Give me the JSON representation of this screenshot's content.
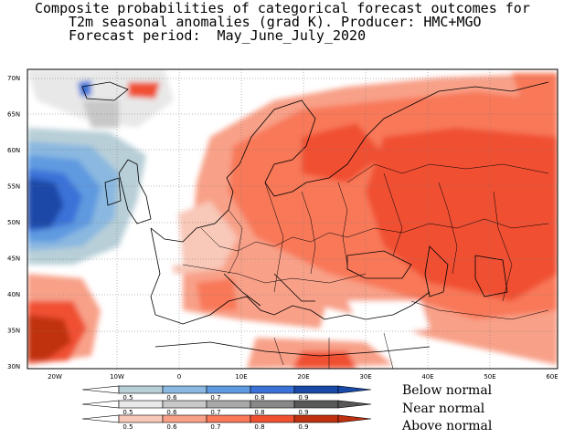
{
  "title": {
    "line1": "Composite probabilities of categorical forecast outcomes for",
    "line2": "T2m seasonal anomalies (grad K). Producer: HMC+MGO",
    "line3": "Forecast period:  May_June_July_2020"
  },
  "map": {
    "lat_labels": [
      "70N",
      "65N",
      "60N",
      "55N",
      "50N",
      "45N",
      "40N",
      "35N",
      "30N"
    ],
    "lon_labels": [
      "20W",
      "10W",
      "0",
      "10E",
      "20E",
      "30E",
      "40E",
      "50E",
      "60E"
    ]
  },
  "legend": {
    "below": {
      "label": "Below normal",
      "ticks": [
        "0.5",
        "0.6",
        "0.7",
        "0.8",
        "0.9"
      ],
      "colors": [
        "#b8cfd8",
        "#8ab8e0",
        "#5e9ae0",
        "#3a72d8",
        "#1a4aa8"
      ]
    },
    "near": {
      "label": "Near normal",
      "ticks": [
        "0.5",
        "0.6",
        "0.7",
        "0.8",
        "0.9"
      ],
      "colors": [
        "#e8e8e8",
        "#c8c8c8",
        "#a8a8a8",
        "#888888",
        "#585858"
      ]
    },
    "above": {
      "label": "Above normal",
      "ticks": [
        "0.5",
        "0.6",
        "0.7",
        "0.8",
        "0.9"
      ],
      "colors": [
        "#f8c8b8",
        "#f8a088",
        "#f87858",
        "#f05030",
        "#c03010"
      ]
    }
  }
}
